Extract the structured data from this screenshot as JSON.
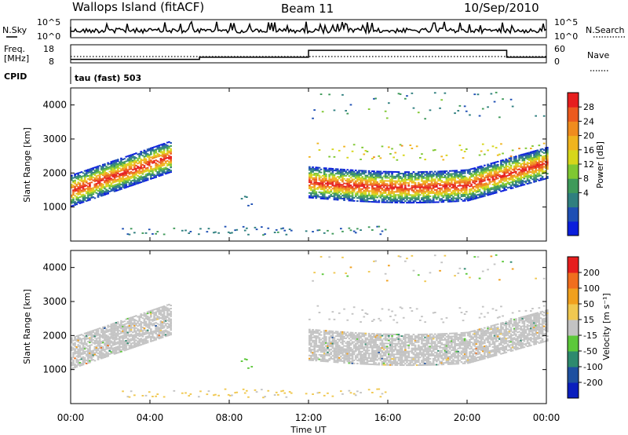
{
  "header": {
    "title": "Wallops Island (fitACF)",
    "beam": "Beam 11",
    "date": "10/Sep/2010"
  },
  "nsky_panel": {
    "left_label": "N.Sky",
    "right_label": "N.Search",
    "ticks": [
      "10^5",
      "10^0"
    ]
  },
  "freq_panel": {
    "left_label_1": "Freq.",
    "left_label_2": "[MHz]",
    "left_ticks": [
      "18",
      "8"
    ],
    "right_label": "Nave",
    "right_ticks": [
      "60",
      "0"
    ]
  },
  "cpid": {
    "label": "CPID",
    "value": "tau (fast) 503"
  },
  "power_panel": {
    "ylabel": "Slant Range [km]",
    "yticks": [
      "4000",
      "3000",
      "2000",
      "1000"
    ],
    "colorbar_label": "Power [dB]",
    "colorbar_ticks": [
      "28",
      "24",
      "20",
      "16",
      "12",
      "8",
      "4"
    ],
    "colors": [
      "#0a1edc",
      "#1e4fb4",
      "#2f7f7f",
      "#3f9a5a",
      "#7fc832",
      "#d6d61a",
      "#f0b41e",
      "#f08c1e",
      "#ec5a1e",
      "#e61e1e"
    ]
  },
  "velocity_panel": {
    "ylabel": "Slant Range [km]",
    "yticks": [
      "4000",
      "3000",
      "2000",
      "1000"
    ],
    "colorbar_label": "Velocity [m s⁻¹]",
    "colorbar_ticks": [
      "200",
      "100",
      "50",
      "15",
      "-15",
      "-50",
      "-100",
      "-200"
    ],
    "colors": [
      "#0a1ebe",
      "#1e50a0",
      "#2e8a6e",
      "#5cc83a",
      "#c3c3c3",
      "#f0c850",
      "#f0a01e",
      "#f06e1e",
      "#e61e1e"
    ]
  },
  "xaxis": {
    "label": "Time UT",
    "ticks": [
      "00:00",
      "04:00",
      "08:00",
      "12:00",
      "16:00",
      "20:00",
      "00:00"
    ]
  },
  "chart_data": {
    "type": "heatmap",
    "x_range_hours": [
      0,
      24
    ],
    "y_range_km": [
      0,
      4500
    ],
    "params": [
      {
        "name": "Power",
        "units": "dB",
        "range": [
          0,
          30
        ]
      },
      {
        "name": "Velocity",
        "units": "m s⁻¹",
        "range": [
          -250,
          250
        ]
      }
    ],
    "freq_mhz": [
      {
        "t_start": 0.0,
        "t_end": 6.5,
        "freq": 9.5
      },
      {
        "t_start": 6.5,
        "t_end": 12.0,
        "freq": 11
      },
      {
        "t_start": 12.0,
        "t_end": 22.0,
        "freq": 16
      },
      {
        "t_start": 22.0,
        "t_end": 24.0,
        "freq": 11
      }
    ]
  }
}
